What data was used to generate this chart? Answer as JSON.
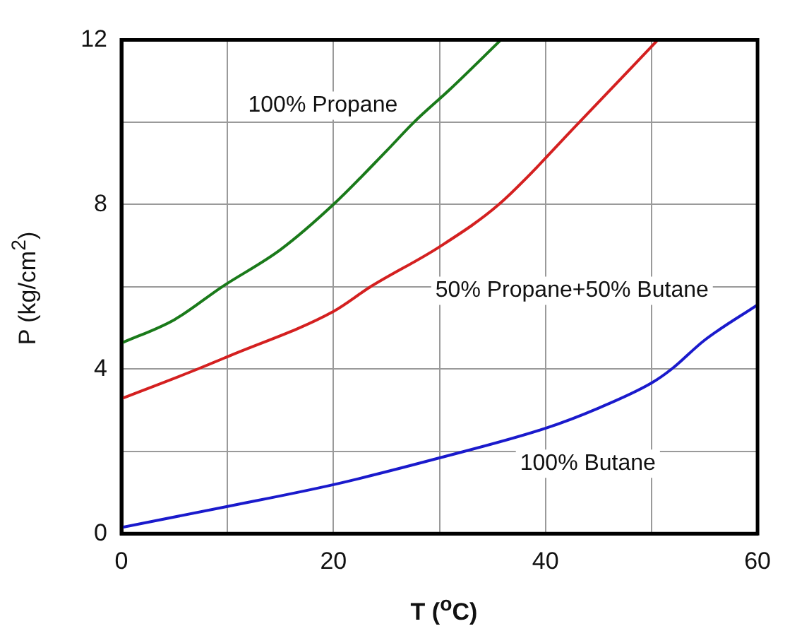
{
  "chart_data": {
    "type": "line",
    "xlabel": "T ($^{o}$C)",
    "ylabel": "P (kg/cm$^{2}$)",
    "xlim": [
      0,
      60
    ],
    "ylim": [
      0,
      12
    ],
    "xticks": [
      0,
      {
        "value": 10,
        "label": null
      },
      20,
      {
        "value": 30,
        "label": null
      },
      40,
      {
        "value": 50,
        "label": null
      },
      60
    ],
    "yticks": [
      0,
      {
        "value": 2,
        "label": null
      },
      4,
      {
        "value": 6,
        "label": null
      },
      8,
      {
        "value": 10,
        "label": null
      },
      12
    ],
    "grid": true,
    "legend": false,
    "marker": "none",
    "series": [
      {
        "name": "100% Propane",
        "color": "#1a7a1a",
        "x": [
          0,
          5,
          9.5,
          15,
          20,
          25,
          27.6,
          31,
          35.8
        ],
        "values": [
          4.63,
          5.2,
          6,
          6.9,
          8,
          9.3,
          10,
          10.8,
          12
        ]
      },
      {
        "name": "50% Propane+50% Butane",
        "color": "#d42020",
        "x": [
          0,
          7.2,
          10,
          20,
          23.5,
          30,
          35.6,
          43.2,
          50.6
        ],
        "values": [
          3.28,
          4,
          4.3,
          5.4,
          6,
          6.97,
          8,
          10,
          12
        ]
      },
      {
        "name": "100% Butane",
        "color": "#1a1acc",
        "x": [
          0,
          10,
          20,
          30,
          40,
          45,
          50,
          51.9,
          55,
          60
        ],
        "values": [
          0.15,
          0.66,
          1.19,
          1.84,
          2.56,
          3.05,
          3.66,
          4,
          4.7,
          5.56
        ]
      }
    ]
  }
}
